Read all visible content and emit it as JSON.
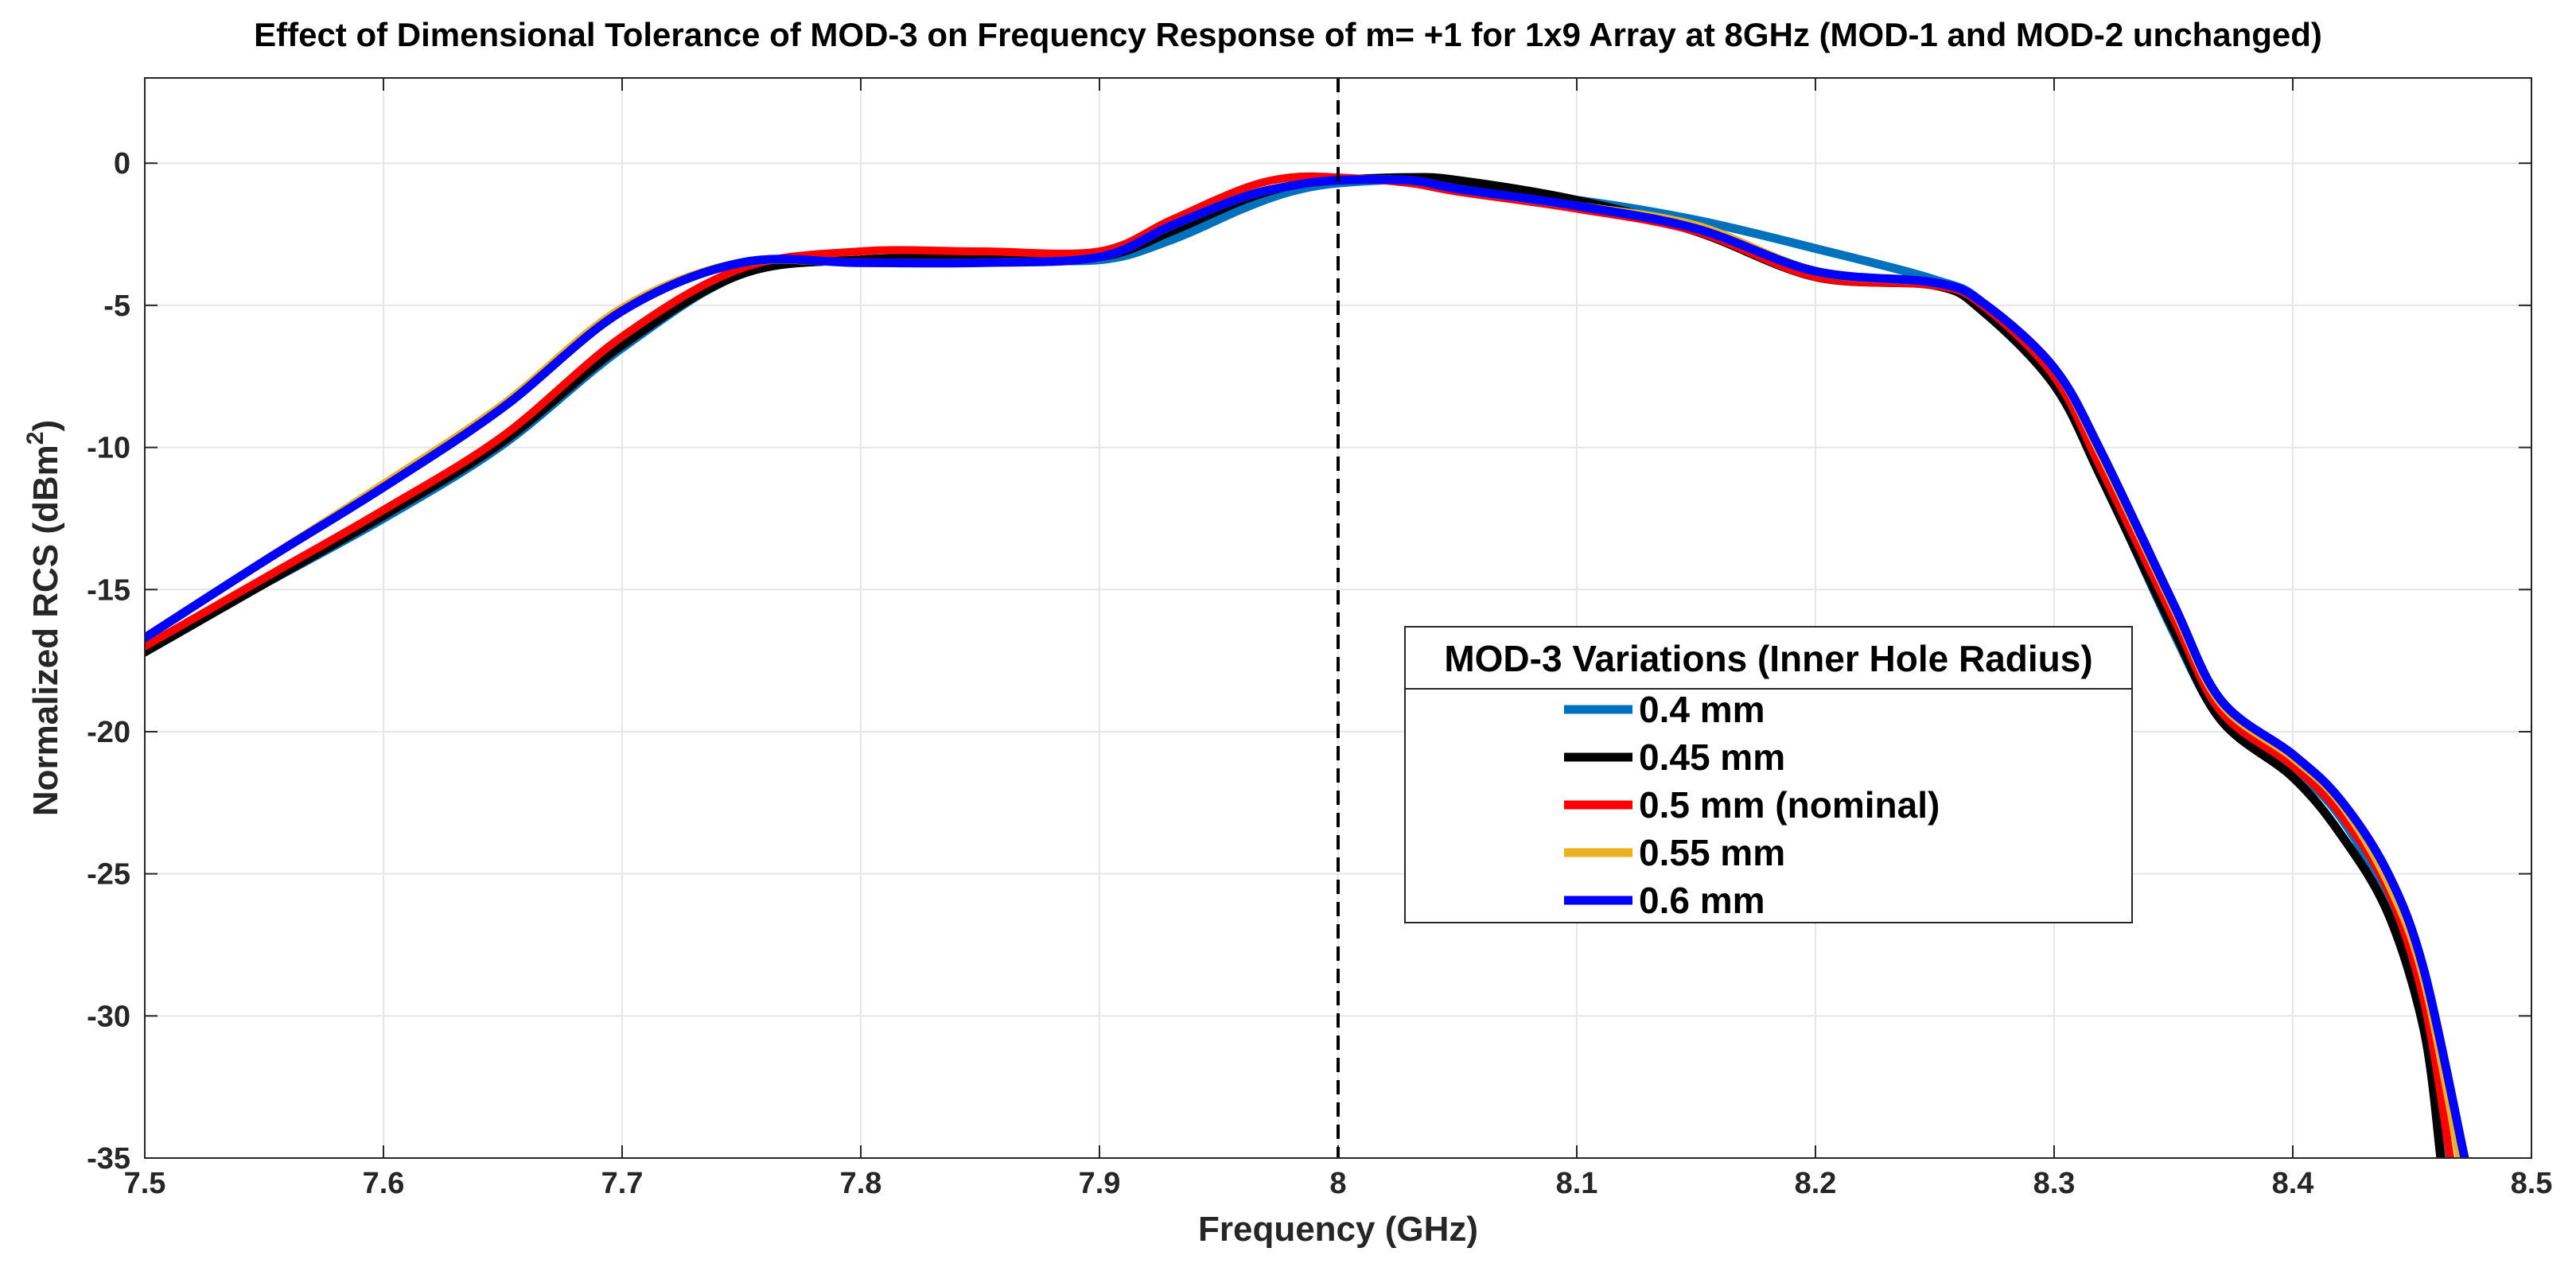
{
  "chart_data": {
    "type": "line",
    "title": "Effect of Dimensional Tolerance of MOD-3 on Frequency Response of m= +1 for 1x9 Array at 8GHz (MOD-1 and MOD-2 unchanged)",
    "xlabel": "Frequency (GHz)",
    "ylabel_main": "Normalized RCS (dBm",
    "ylabel_sup": "2",
    "ylabel_end": ")",
    "xlim": [
      7.5,
      8.5
    ],
    "ylim": [
      -35,
      3
    ],
    "xticks": [
      7.5,
      7.6,
      7.7,
      7.8,
      7.9,
      8,
      8.1,
      8.2,
      8.3,
      8.4,
      8.5
    ],
    "xtick_labels": [
      "7.5",
      "7.6",
      "7.7",
      "7.8",
      "7.9",
      "8",
      "8.1",
      "8.2",
      "8.3",
      "8.4",
      "8.5"
    ],
    "yticks": [
      0,
      -5,
      -10,
      -15,
      -20,
      -25,
      -30,
      -35
    ],
    "ytick_labels": [
      "0",
      "-5",
      "-10",
      "-15",
      "-20",
      "-25",
      "-30",
      "-35"
    ],
    "grid": true,
    "vline": {
      "x": 8,
      "style": "dashed",
      "color": "#000000"
    },
    "legend": {
      "title": "MOD-3 Variations (Inner Hole Radius)",
      "placement": "center-right"
    },
    "series": [
      {
        "name": "0.4 mm",
        "color": "#0072BD",
        "points": [
          [
            7.5,
            -17.1
          ],
          [
            7.55,
            -14.8
          ],
          [
            7.6,
            -12.5
          ],
          [
            7.65,
            -9.9
          ],
          [
            7.7,
            -6.5
          ],
          [
            7.75,
            -3.9
          ],
          [
            7.8,
            -3.4
          ],
          [
            7.85,
            -3.35
          ],
          [
            7.9,
            -3.4
          ],
          [
            7.93,
            -2.7
          ],
          [
            7.96,
            -1.6
          ],
          [
            7.98,
            -1.0
          ],
          [
            8.0,
            -0.7
          ],
          [
            8.03,
            -0.6
          ],
          [
            8.05,
            -0.9
          ],
          [
            8.1,
            -1.3
          ],
          [
            8.15,
            -2.0
          ],
          [
            8.2,
            -3.0
          ],
          [
            8.25,
            -4.1
          ],
          [
            8.27,
            -4.9
          ],
          [
            8.3,
            -7.6
          ],
          [
            8.32,
            -11.0
          ],
          [
            8.35,
            -16.5
          ],
          [
            8.37,
            -19.5
          ],
          [
            8.4,
            -21.3
          ],
          [
            8.42,
            -23.0
          ],
          [
            8.44,
            -26.0
          ],
          [
            8.455,
            -30.0
          ],
          [
            8.465,
            -35.0
          ]
        ]
      },
      {
        "name": "0.45 mm",
        "color": "#000000",
        "points": [
          [
            7.5,
            -17.2
          ],
          [
            7.55,
            -14.8
          ],
          [
            7.6,
            -12.4
          ],
          [
            7.65,
            -9.8
          ],
          [
            7.7,
            -6.4
          ],
          [
            7.75,
            -3.9
          ],
          [
            7.8,
            -3.4
          ],
          [
            7.85,
            -3.35
          ],
          [
            7.9,
            -3.3
          ],
          [
            7.93,
            -2.4
          ],
          [
            7.96,
            -1.3
          ],
          [
            7.98,
            -0.8
          ],
          [
            8.0,
            -0.6
          ],
          [
            8.03,
            -0.5
          ],
          [
            8.05,
            -0.6
          ],
          [
            8.1,
            -1.3
          ],
          [
            8.15,
            -2.4
          ],
          [
            8.2,
            -4.0
          ],
          [
            8.25,
            -4.3
          ],
          [
            8.27,
            -5.2
          ],
          [
            8.3,
            -7.8
          ],
          [
            8.32,
            -11.1
          ],
          [
            8.35,
            -16.4
          ],
          [
            8.37,
            -19.6
          ],
          [
            8.4,
            -21.6
          ],
          [
            8.42,
            -23.6
          ],
          [
            8.44,
            -26.4
          ],
          [
            8.455,
            -30.5
          ],
          [
            8.462,
            -35.0
          ]
        ]
      },
      {
        "name": "0.5 mm (nominal)",
        "color": "#FF0000",
        "points": [
          [
            7.5,
            -17.0
          ],
          [
            7.55,
            -14.6
          ],
          [
            7.6,
            -12.2
          ],
          [
            7.65,
            -9.6
          ],
          [
            7.7,
            -6.1
          ],
          [
            7.75,
            -3.7
          ],
          [
            7.8,
            -3.1
          ],
          [
            7.85,
            -3.1
          ],
          [
            7.9,
            -3.1
          ],
          [
            7.93,
            -2.0
          ],
          [
            7.96,
            -0.9
          ],
          [
            7.98,
            -0.5
          ],
          [
            8.0,
            -0.5
          ],
          [
            8.03,
            -0.7
          ],
          [
            8.05,
            -1.0
          ],
          [
            8.1,
            -1.6
          ],
          [
            8.15,
            -2.4
          ],
          [
            8.2,
            -4.0
          ],
          [
            8.25,
            -4.3
          ],
          [
            8.27,
            -5.0
          ],
          [
            8.3,
            -7.5
          ],
          [
            8.32,
            -10.8
          ],
          [
            8.35,
            -16.0
          ],
          [
            8.37,
            -19.3
          ],
          [
            8.4,
            -21.2
          ],
          [
            8.42,
            -22.9
          ],
          [
            8.44,
            -25.6
          ],
          [
            8.455,
            -29.5
          ],
          [
            8.466,
            -35.0
          ]
        ]
      },
      {
        "name": "0.55 mm",
        "color": "#EDB120",
        "points": [
          [
            7.5,
            -16.7
          ],
          [
            7.55,
            -14.0
          ],
          [
            7.6,
            -11.3
          ],
          [
            7.65,
            -8.5
          ],
          [
            7.7,
            -5.1
          ],
          [
            7.75,
            -3.5
          ],
          [
            7.8,
            -3.5
          ],
          [
            7.85,
            -3.5
          ],
          [
            7.9,
            -3.3
          ],
          [
            7.93,
            -2.2
          ],
          [
            7.96,
            -1.2
          ],
          [
            7.98,
            -0.8
          ],
          [
            8.0,
            -0.6
          ],
          [
            8.03,
            -0.6
          ],
          [
            8.05,
            -0.9
          ],
          [
            8.1,
            -1.5
          ],
          [
            8.15,
            -2.2
          ],
          [
            8.2,
            -3.8
          ],
          [
            8.25,
            -4.2
          ],
          [
            8.27,
            -4.9
          ],
          [
            8.3,
            -7.2
          ],
          [
            8.32,
            -10.3
          ],
          [
            8.35,
            -15.6
          ],
          [
            8.37,
            -19.0
          ],
          [
            8.4,
            -20.9
          ],
          [
            8.42,
            -22.5
          ],
          [
            8.44,
            -25.3
          ],
          [
            8.455,
            -28.7
          ],
          [
            8.47,
            -35.0
          ]
        ]
      },
      {
        "name": "0.6 mm",
        "color": "#0000FF",
        "points": [
          [
            7.5,
            -16.7
          ],
          [
            7.55,
            -14.0
          ],
          [
            7.6,
            -11.4
          ],
          [
            7.65,
            -8.6
          ],
          [
            7.7,
            -5.2
          ],
          [
            7.75,
            -3.5
          ],
          [
            7.8,
            -3.5
          ],
          [
            7.85,
            -3.5
          ],
          [
            7.9,
            -3.3
          ],
          [
            7.93,
            -2.2
          ],
          [
            7.96,
            -1.2
          ],
          [
            7.98,
            -0.8
          ],
          [
            8.0,
            -0.6
          ],
          [
            8.03,
            -0.6
          ],
          [
            8.05,
            -0.9
          ],
          [
            8.1,
            -1.5
          ],
          [
            8.15,
            -2.3
          ],
          [
            8.2,
            -3.8
          ],
          [
            8.25,
            -4.2
          ],
          [
            8.27,
            -4.9
          ],
          [
            8.3,
            -7.2
          ],
          [
            8.32,
            -10.2
          ],
          [
            8.35,
            -15.5
          ],
          [
            8.37,
            -18.9
          ],
          [
            8.4,
            -20.8
          ],
          [
            8.42,
            -22.4
          ],
          [
            8.44,
            -25.0
          ],
          [
            8.455,
            -28.4
          ],
          [
            8.472,
            -35.0
          ]
        ]
      }
    ]
  }
}
